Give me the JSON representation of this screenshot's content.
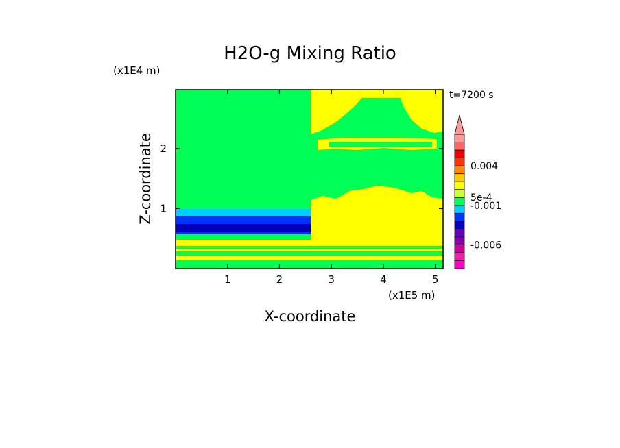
{
  "chart_data": {
    "type": "heatmap",
    "title": "H2O-g Mixing Ratio",
    "xlabel": "X-coordinate",
    "ylabel": "Z-coordinate",
    "x_unit": "(x1E5 m)",
    "y_unit": "(x1E4 m)",
    "time_label": "t=7200 s",
    "xlim": [
      0,
      5.15
    ],
    "ylim": [
      0,
      2.98
    ],
    "x_ticks": [
      {
        "value": 1,
        "label": "1"
      },
      {
        "value": 2,
        "label": "2"
      },
      {
        "value": 3,
        "label": "3"
      },
      {
        "value": 4,
        "label": "4"
      },
      {
        "value": 5,
        "label": "5"
      }
    ],
    "y_ticks": [
      {
        "value": 1,
        "label": "1"
      },
      {
        "value": 2,
        "label": "2"
      }
    ],
    "colorbar": {
      "levels": [
        -0.009,
        -0.008,
        -0.007,
        -0.006,
        -0.005,
        -0.004,
        -0.003,
        -0.002,
        -0.001,
        0.0005,
        0.001,
        0.002,
        0.003,
        0.004,
        0.005,
        0.006,
        0.007
      ],
      "colors": [
        "#ff00cc",
        "#ee22aa",
        "#cc0099",
        "#8800aa",
        "#6600bb",
        "#0000bb",
        "#0033ff",
        "#00ccff",
        "#00ff55",
        "#ccff33",
        "#ffff00",
        "#ffcc00",
        "#ff8800",
        "#ff3300",
        "#ee0000",
        "#ff6666",
        "#ff9999"
      ],
      "labels": [
        {
          "value": 0.004,
          "label": "0.004"
        },
        {
          "value": 0.0005,
          "label": "5e-4"
        },
        {
          "value": -0.001,
          "label": "-0.001"
        },
        {
          "value": -0.006,
          "label": "-0.006"
        }
      ]
    },
    "regions": [
      {
        "name": "background",
        "color": "#00ff55"
      },
      {
        "name": "left-blue-layer",
        "x": [
          0,
          2.6
        ],
        "y": [
          0.65,
          0.98
        ],
        "color": "#0000bb"
      },
      {
        "name": "right-moist-zone",
        "x": [
          2.6,
          5.15
        ],
        "y": [
          0.4,
          1.4
        ],
        "color": "#ffff00"
      },
      {
        "name": "upper-band",
        "x": [
          2.6,
          5.15
        ],
        "y": [
          1.95,
          2.15
        ],
        "color": "#ffff00"
      },
      {
        "name": "low-level-band",
        "x": [
          0,
          5.15
        ],
        "y": [
          0.05,
          0.45
        ],
        "color": "#ffff00"
      }
    ]
  }
}
